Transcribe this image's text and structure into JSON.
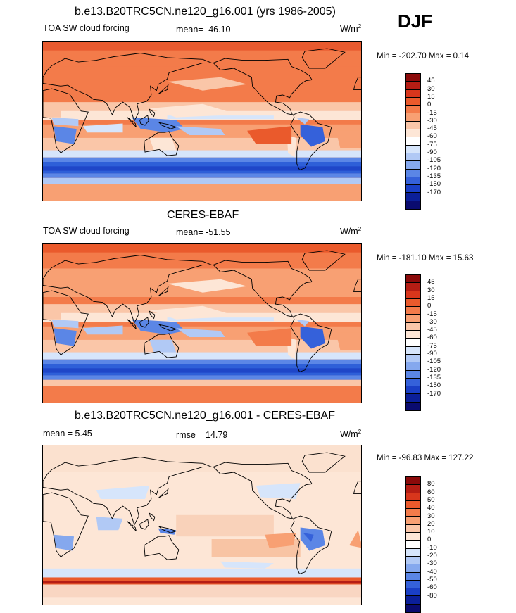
{
  "season": "DJF",
  "panels": [
    {
      "title": "b.e13.B20TRC5CN.ne120_g16.001 (yrs 1986-2005)",
      "left_label": "TOA SW cloud forcing",
      "center_label": "mean= -46.10",
      "units": "W/m",
      "units_sup": "2",
      "minmax": "Min = -202.70 Max =   0.14",
      "levels": [
        "45",
        "30",
        "15",
        "0",
        "-15",
        "-30",
        "-45",
        "-60",
        "-75",
        "-90",
        "-105",
        "-120",
        "-135",
        "-150",
        "-170"
      ],
      "colors": [
        "#8b0a0a",
        "#b51d14",
        "#d8361c",
        "#ea5a2c",
        "#f37b4a",
        "#f8a073",
        "#fac6a8",
        "#fde6d6",
        "#ffffff",
        "#d6e5fb",
        "#b1c9f5",
        "#85a8ee",
        "#5b86e6",
        "#3561da",
        "#1a3fc6",
        "#0b1f99",
        "#0a0b6f"
      ],
      "map_style": "model"
    },
    {
      "title": "CERES-EBAF",
      "left_label": "TOA SW cloud forcing",
      "center_label": "mean= -51.55",
      "units": "W/m",
      "units_sup": "2",
      "minmax": "Min = -181.10 Max =  15.63",
      "levels": [
        "45",
        "30",
        "15",
        "0",
        "-15",
        "-30",
        "-45",
        "-60",
        "-75",
        "-90",
        "-105",
        "-120",
        "-135",
        "-150",
        "-170"
      ],
      "colors": [
        "#8b0a0a",
        "#b51d14",
        "#d8361c",
        "#ea5a2c",
        "#f37b4a",
        "#f8a073",
        "#fac6a8",
        "#fde6d6",
        "#ffffff",
        "#d6e5fb",
        "#b1c9f5",
        "#85a8ee",
        "#5b86e6",
        "#3561da",
        "#1a3fc6",
        "#0b1f99",
        "#0a0b6f"
      ],
      "map_style": "obs"
    },
    {
      "title": "b.e13.B20TRC5CN.ne120_g16.001 - CERES-EBAF",
      "left_label": "mean =   5.45",
      "center_label": "rmse =  14.79",
      "units": "W/m",
      "units_sup": "2",
      "minmax": "Min = -96.83 Max = 127.22",
      "levels": [
        "80",
        "60",
        "50",
        "40",
        "30",
        "20",
        "10",
        "0",
        "-10",
        "-20",
        "-30",
        "-40",
        "-50",
        "-60",
        "-80"
      ],
      "colors": [
        "#8b0a0a",
        "#b51d14",
        "#d8361c",
        "#ea5a2c",
        "#f37b4a",
        "#f8a073",
        "#fac6a8",
        "#fde6d6",
        "#ffffff",
        "#d6e5fb",
        "#b1c9f5",
        "#85a8ee",
        "#5b86e6",
        "#3561da",
        "#1a3fc6",
        "#0b1f99",
        "#0a0b6f"
      ],
      "map_style": "diff"
    }
  ],
  "chart_data": [
    {
      "type": "heatmap",
      "title": "b.e13.B20TRC5CN.ne120_g16.001 (yrs 1986-2005)",
      "variable": "TOA SW cloud forcing",
      "season": "DJF",
      "units": "W/m2",
      "mean": -46.1,
      "min": -202.7,
      "max": 0.14,
      "contour_levels": [
        45,
        30,
        15,
        0,
        -15,
        -30,
        -45,
        -60,
        -75,
        -90,
        -105,
        -120,
        -135,
        -150,
        -170
      ]
    },
    {
      "type": "heatmap",
      "title": "CERES-EBAF",
      "variable": "TOA SW cloud forcing",
      "season": "DJF",
      "units": "W/m2",
      "mean": -51.55,
      "min": -181.1,
      "max": 15.63,
      "contour_levels": [
        45,
        30,
        15,
        0,
        -15,
        -30,
        -45,
        -60,
        -75,
        -90,
        -105,
        -120,
        -135,
        -150,
        -170
      ]
    },
    {
      "type": "heatmap",
      "title": "b.e13.B20TRC5CN.ne120_g16.001 - CERES-EBAF",
      "season": "DJF",
      "units": "W/m2",
      "mean": 5.45,
      "rmse": 14.79,
      "min": -96.83,
      "max": 127.22,
      "contour_levels": [
        80,
        60,
        50,
        40,
        30,
        20,
        10,
        0,
        -10,
        -20,
        -30,
        -40,
        -50,
        -60,
        -80
      ]
    }
  ]
}
